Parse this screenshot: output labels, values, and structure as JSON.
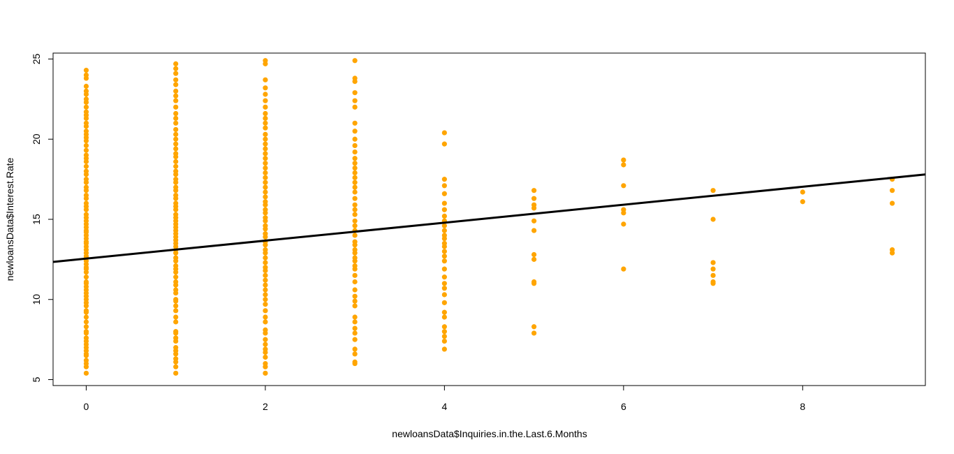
{
  "chart_data": {
    "type": "scatter",
    "title": "",
    "xlabel": "newloansData$Inquiries.in.the.Last.6.Months",
    "ylabel": "newloansData$Interest.Rate",
    "xlim": [
      -0.37,
      9.37
    ],
    "ylim": [
      4.63,
      25.37
    ],
    "x_ticks": [
      0,
      2,
      4,
      6,
      8
    ],
    "y_ticks": [
      5,
      10,
      15,
      20,
      25
    ],
    "grid": false,
    "legend": "none",
    "point_color": "#FFA500",
    "line_color": "#000000",
    "regression_line": {
      "intercept": 12.55,
      "slope": 0.56
    },
    "points": [
      {
        "x": 0,
        "y": [
          5.4,
          5.8,
          6.0,
          6.2,
          6.5,
          6.6,
          6.8,
          7.0,
          7.2,
          7.4,
          7.6,
          7.9,
          8.0,
          8.3,
          8.6,
          8.9,
          9.2,
          9.3,
          9.6,
          9.8,
          10.0,
          10.2,
          10.4,
          10.6,
          10.8,
          11.0,
          11.1,
          11.4,
          11.7,
          11.9,
          12.0,
          12.2,
          12.4,
          12.6,
          12.7,
          12.9,
          13.1,
          13.3,
          13.5,
          13.6,
          13.8,
          14.0,
          14.2,
          14.3,
          14.5,
          14.7,
          14.9,
          15.1,
          15.3,
          15.6,
          15.8,
          16.0,
          16.3,
          16.5,
          16.8,
          17.0,
          17.3,
          17.5,
          17.8,
          18.0,
          18.3,
          18.6,
          18.8,
          19.0,
          19.3,
          19.6,
          19.9,
          20.1,
          20.3,
          20.5,
          20.8,
          21.0,
          21.3,
          21.5,
          21.7,
          22.0,
          22.3,
          22.5,
          22.8,
          23.0,
          23.3,
          23.8,
          24.0,
          24.3
        ]
      },
      {
        "x": 1,
        "y": [
          5.4,
          5.8,
          6.1,
          6.3,
          6.6,
          6.8,
          7.0,
          7.4,
          7.6,
          7.9,
          8.0,
          8.6,
          8.9,
          9.3,
          9.6,
          9.9,
          10.0,
          10.4,
          10.6,
          10.9,
          11.1,
          11.4,
          11.7,
          11.9,
          12.1,
          12.4,
          12.6,
          12.9,
          13.1,
          13.3,
          13.5,
          13.7,
          13.9,
          14.1,
          14.3,
          14.5,
          14.7,
          14.9,
          15.1,
          15.3,
          15.6,
          15.8,
          16.0,
          16.3,
          16.5,
          16.8,
          17.0,
          17.3,
          17.5,
          17.8,
          18.0,
          18.3,
          18.6,
          18.9,
          19.1,
          19.4,
          19.7,
          20.0,
          20.3,
          20.6,
          21.0,
          21.3,
          21.6,
          22.0,
          22.4,
          22.7,
          23.0,
          23.4,
          23.7,
          24.1,
          24.4,
          24.7
        ]
      },
      {
        "x": 2,
        "y": [
          5.4,
          5.8,
          6.0,
          6.4,
          6.7,
          6.9,
          7.2,
          7.5,
          7.9,
          8.1,
          8.6,
          8.9,
          9.3,
          9.7,
          10.0,
          10.3,
          10.6,
          10.9,
          11.2,
          11.5,
          11.8,
          12.0,
          12.3,
          12.6,
          12.9,
          13.1,
          13.4,
          13.6,
          13.9,
          14.1,
          14.4,
          14.6,
          14.9,
          15.1,
          15.4,
          15.6,
          15.9,
          16.1,
          16.4,
          16.7,
          17.0,
          17.3,
          17.6,
          17.9,
          18.2,
          18.5,
          18.8,
          19.1,
          19.4,
          19.7,
          20.0,
          20.3,
          20.7,
          21.0,
          21.3,
          21.6,
          22.0,
          22.4,
          22.8,
          23.2,
          23.7,
          24.7,
          24.9
        ]
      },
      {
        "x": 3,
        "y": [
          6.0,
          6.1,
          6.6,
          6.9,
          7.5,
          7.9,
          8.2,
          8.6,
          8.9,
          9.6,
          9.9,
          10.2,
          10.6,
          11.1,
          11.5,
          11.9,
          12.1,
          12.4,
          12.6,
          12.9,
          13.1,
          13.4,
          13.6,
          14.0,
          14.3,
          14.6,
          14.9,
          15.3,
          15.6,
          15.9,
          16.3,
          16.7,
          17.0,
          17.3,
          17.6,
          17.9,
          18.2,
          18.5,
          18.8,
          19.2,
          19.6,
          20.0,
          20.5,
          21.0,
          22.0,
          22.4,
          22.9,
          23.6,
          23.8,
          24.9
        ]
      },
      {
        "x": 4,
        "y": [
          6.9,
          7.4,
          7.7,
          8.0,
          8.3,
          8.9,
          9.2,
          9.8,
          10.3,
          10.7,
          11.0,
          11.4,
          11.9,
          12.4,
          12.7,
          13.0,
          13.3,
          13.5,
          13.8,
          14.0,
          14.3,
          14.6,
          14.9,
          15.2,
          15.6,
          16.0,
          16.6,
          17.1,
          17.5,
          19.7,
          20.4
        ]
      },
      {
        "x": 5,
        "y": [
          7.9,
          8.3,
          11.0,
          11.1,
          12.5,
          12.8,
          14.3,
          14.9,
          15.7,
          15.9,
          16.3,
          16.8
        ]
      },
      {
        "x": 6,
        "y": [
          11.9,
          14.7,
          15.4,
          15.6,
          17.1,
          18.4,
          18.7
        ]
      },
      {
        "x": 7,
        "y": [
          11.0,
          11.1,
          11.5,
          11.9,
          12.3,
          15.0,
          16.8
        ]
      },
      {
        "x": 8,
        "y": [
          16.1,
          16.7
        ]
      },
      {
        "x": 9,
        "y": [
          12.9,
          13.1,
          16.0,
          16.8,
          17.5
        ]
      }
    ]
  }
}
